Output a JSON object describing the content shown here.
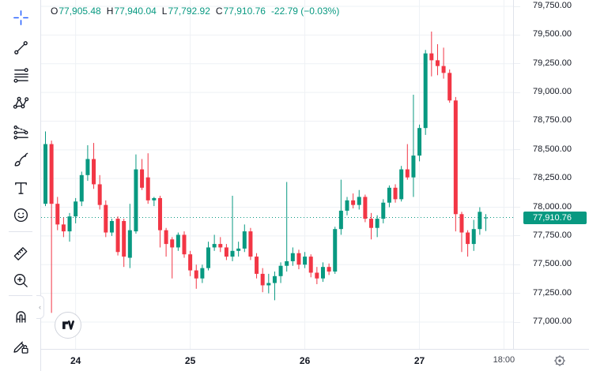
{
  "legend": {
    "open_label": "O",
    "open_value": "77,905.48",
    "high_label": "H",
    "high_value": "77,940.04",
    "low_label": "L",
    "low_value": "77,792.92",
    "close_label": "C",
    "close_value": "77,910.76",
    "change": "-22.79 (−0.03%)"
  },
  "colors": {
    "up": "#089981",
    "down": "#F23645",
    "accent_blue": "#2962FF",
    "text": "#131722",
    "grid": "#EEF1F5",
    "border": "#E0E3EB",
    "badge_bg": "#089981",
    "badge_text": "#FFFFFF"
  },
  "toolbar": {
    "tools": [
      {
        "id": "crosshair-cursor",
        "active": true
      },
      {
        "id": "trend-line"
      },
      {
        "id": "fib-retracement"
      },
      {
        "id": "xabcd-pattern"
      },
      {
        "id": "prediction-measurement"
      },
      {
        "id": "brush"
      },
      {
        "id": "text-tool"
      },
      {
        "id": "emoji"
      },
      {
        "id": "measure-ruler"
      },
      {
        "id": "zoom-in"
      },
      {
        "id": "magnet"
      },
      {
        "id": "drawing-lock"
      }
    ],
    "collapse_handle": "‹"
  },
  "price_axis": {
    "badge": "77,910.76",
    "labels": [
      {
        "text": "79,750.00",
        "value": 79750
      },
      {
        "text": "79,500.00",
        "value": 79500
      },
      {
        "text": "79,250.00",
        "value": 79250
      },
      {
        "text": "79,000.00",
        "value": 79000
      },
      {
        "text": "78,750.00",
        "value": 78750
      },
      {
        "text": "78,500.00",
        "value": 78500
      },
      {
        "text": "78,250.00",
        "value": 78250
      },
      {
        "text": "78,000.00",
        "value": 78000
      },
      {
        "text": "77,750.00",
        "value": 77750
      },
      {
        "text": "77,500.00",
        "value": 77500
      },
      {
        "text": "77,250.00",
        "value": 77250
      },
      {
        "text": "77,000.00",
        "value": 77000
      }
    ]
  },
  "time_axis": {
    "ticks": [
      {
        "label": "24",
        "index": 5,
        "major": true
      },
      {
        "label": "25",
        "index": 24,
        "major": true
      },
      {
        "label": "26",
        "index": 43,
        "major": true
      },
      {
        "label": "27",
        "index": 62,
        "major": true
      },
      {
        "label": "18:00",
        "index": 76,
        "major": false
      }
    ],
    "settings_icon": "gear"
  },
  "watermark_logo": "TradingView",
  "chart_data": {
    "type": "candlestick",
    "ylabel": "price",
    "price_step": 250,
    "ylim": [
      77000,
      79750
    ],
    "last_price": 77910.76,
    "last_price_line": "dotted",
    "current_bar": {
      "open": 77905.48,
      "high": 77940.04,
      "low": 77792.92,
      "close": 77910.76,
      "change": -22.79,
      "change_pct": -0.03
    },
    "x_ticks": [
      "24",
      "25",
      "26",
      "27",
      "18:00"
    ],
    "candles_ohlc": [
      [
        78030,
        78660,
        78010,
        78550
      ],
      [
        78550,
        78580,
        77080,
        78030
      ],
      [
        78030,
        78090,
        77800,
        77850
      ],
      [
        77850,
        77910,
        77740,
        77790
      ],
      [
        77790,
        77950,
        77700,
        77920
      ],
      [
        77920,
        78080,
        77860,
        78050
      ],
      [
        78050,
        78310,
        78010,
        78280
      ],
      [
        78280,
        78540,
        78230,
        78420
      ],
      [
        78420,
        78560,
        78160,
        78200
      ],
      [
        78200,
        78280,
        77980,
        78020
      ],
      [
        78020,
        78060,
        77740,
        77780
      ],
      [
        77780,
        77900,
        77750,
        77880
      ],
      [
        77900,
        77920,
        77580,
        77610
      ],
      [
        77880,
        77900,
        77480,
        77570
      ],
      [
        77560,
        78030,
        77470,
        77800
      ],
      [
        77790,
        78460,
        77770,
        78330
      ],
      [
        78330,
        78420,
        78150,
        78170
      ],
      [
        78260,
        78470,
        78030,
        78060
      ],
      [
        78060,
        78090,
        78010,
        78080
      ],
      [
        78080,
        78100,
        77650,
        77800
      ],
      [
        77800,
        77820,
        77570,
        77680
      ],
      [
        77720,
        77740,
        77380,
        77650
      ],
      [
        77650,
        77780,
        77620,
        77760
      ],
      [
        77760,
        77790,
        77560,
        77590
      ],
      [
        77590,
        77620,
        77400,
        77450
      ],
      [
        77450,
        77500,
        77290,
        77380
      ],
      [
        77380,
        77500,
        77340,
        77470
      ],
      [
        77470,
        77700,
        77450,
        77650
      ],
      [
        77650,
        77760,
        77620,
        77680
      ],
      [
        77680,
        77740,
        77610,
        77650
      ],
      [
        77650,
        77680,
        77540,
        77570
      ],
      [
        77570,
        78100,
        77530,
        77620
      ],
      [
        77620,
        77700,
        77570,
        77640
      ],
      [
        77640,
        77850,
        77610,
        77790
      ],
      [
        77790,
        77820,
        77540,
        77570
      ],
      [
        77570,
        77600,
        77380,
        77420
      ],
      [
        77420,
        77470,
        77260,
        77320
      ],
      [
        77320,
        77420,
        77250,
        77340
      ],
      [
        77340,
        77440,
        77190,
        77400
      ],
      [
        77400,
        77520,
        77340,
        77490
      ],
      [
        77490,
        78220,
        77440,
        77530
      ],
      [
        77530,
        77650,
        77490,
        77600
      ],
      [
        77600,
        77630,
        77460,
        77500
      ],
      [
        77500,
        77610,
        77470,
        77570
      ],
      [
        77570,
        77590,
        77390,
        77430
      ],
      [
        77430,
        77480,
        77330,
        77380
      ],
      [
        77380,
        77520,
        77350,
        77480
      ],
      [
        77480,
        77510,
        77410,
        77440
      ],
      [
        77440,
        77830,
        77420,
        77810
      ],
      [
        77810,
        78240,
        77760,
        77970
      ],
      [
        77970,
        78090,
        77930,
        78060
      ],
      [
        78060,
        78120,
        77990,
        78020
      ],
      [
        78020,
        78150,
        77980,
        78090
      ],
      [
        78090,
        78110,
        77870,
        77900
      ],
      [
        77900,
        77950,
        77720,
        77820
      ],
      [
        77820,
        77930,
        77740,
        77900
      ],
      [
        77900,
        78070,
        77860,
        78040
      ],
      [
        78040,
        78190,
        78000,
        78170
      ],
      [
        78170,
        78200,
        78040,
        78070
      ],
      [
        78070,
        78360,
        78050,
        78330
      ],
      [
        78330,
        78550,
        78240,
        78260
      ],
      [
        78260,
        78980,
        78090,
        78450
      ],
      [
        78450,
        78720,
        78400,
        78690
      ],
      [
        78690,
        79370,
        78630,
        79340
      ],
      [
        79340,
        79530,
        79140,
        79280
      ],
      [
        79280,
        79420,
        79150,
        79230
      ],
      [
        79230,
        79390,
        79120,
        79170
      ],
      [
        79170,
        79200,
        78910,
        78930
      ],
      [
        78930,
        78960,
        77790,
        77940
      ],
      [
        77940,
        77960,
        77610,
        77780
      ],
      [
        77780,
        77800,
        77570,
        77680
      ],
      [
        77680,
        77890,
        77620,
        77810
      ],
      [
        77810,
        78000,
        77760,
        77960
      ],
      [
        77905.48,
        77940.04,
        77792.92,
        77910.76
      ]
    ]
  }
}
